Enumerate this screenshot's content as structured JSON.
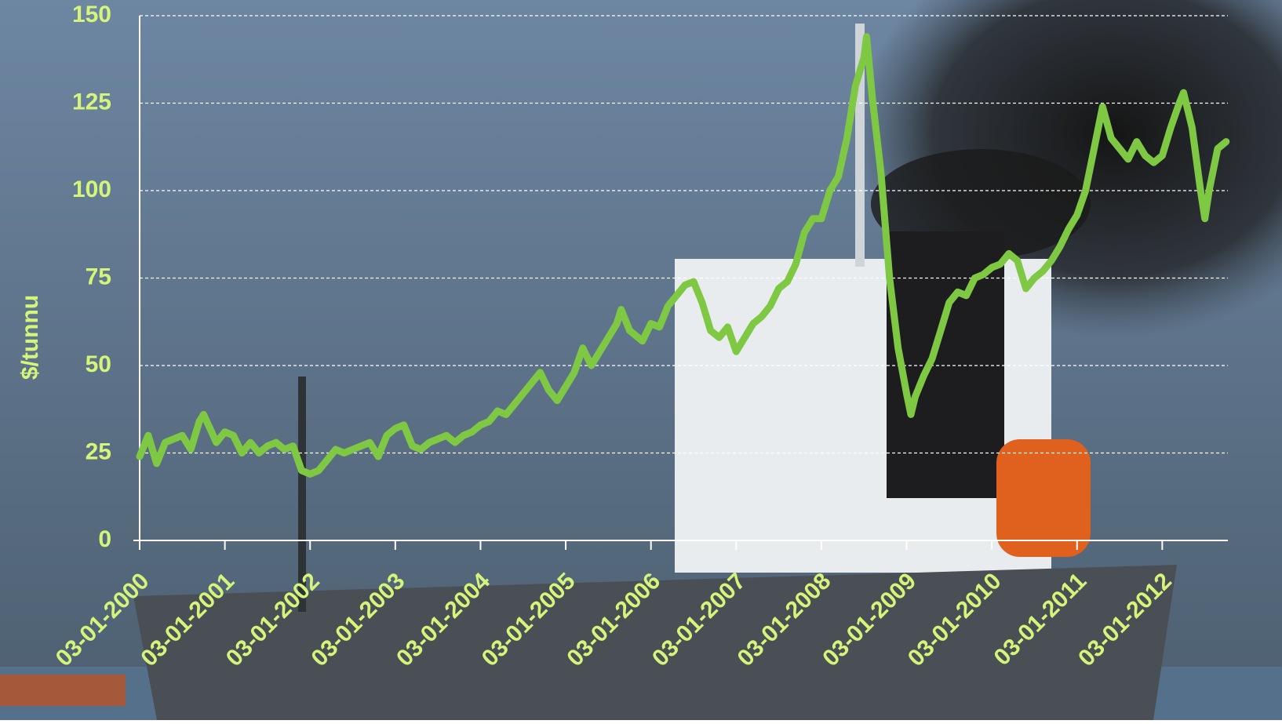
{
  "chart_data": {
    "type": "line",
    "ylabel": "$/tunnu",
    "color": "#7fc843",
    "grid": true,
    "xlim": [
      2000,
      2012.77
    ],
    "ylim": [
      0,
      150
    ],
    "yticks": [
      0,
      25,
      50,
      75,
      100,
      125,
      150
    ],
    "xticks": [
      {
        "value": 2000,
        "label": "03-01-2000"
      },
      {
        "value": 2001,
        "label": "03-01-2001"
      },
      {
        "value": 2002,
        "label": "03-01-2002"
      },
      {
        "value": 2003,
        "label": "03-01-2003"
      },
      {
        "value": 2004,
        "label": "03-01-2004"
      },
      {
        "value": 2005,
        "label": "03-01-2005"
      },
      {
        "value": 2006,
        "label": "03-01-2006"
      },
      {
        "value": 2007,
        "label": "03-01-2007"
      },
      {
        "value": 2008,
        "label": "03-01-2008"
      },
      {
        "value": 2009,
        "label": "03-01-2009"
      },
      {
        "value": 2010,
        "label": "03-01-2010"
      },
      {
        "value": 2011,
        "label": "03-01-2011"
      },
      {
        "value": 2012,
        "label": "03-01-2012"
      }
    ],
    "x": [
      2000.0,
      2000.1,
      2000.2,
      2000.3,
      2000.5,
      2000.6,
      2000.7,
      2000.75,
      2000.9,
      2001.0,
      2001.1,
      2001.2,
      2001.3,
      2001.4,
      2001.5,
      2001.6,
      2001.7,
      2001.8,
      2001.9,
      2002.0,
      2002.1,
      2002.2,
      2002.3,
      2002.4,
      2002.5,
      2002.6,
      2002.7,
      2002.8,
      2002.9,
      2003.0,
      2003.1,
      2003.2,
      2003.3,
      2003.4,
      2003.5,
      2003.6,
      2003.7,
      2003.8,
      2003.9,
      2004.0,
      2004.1,
      2004.2,
      2004.3,
      2004.4,
      2004.5,
      2004.6,
      2004.7,
      2004.8,
      2004.9,
      2005.0,
      2005.1,
      2005.2,
      2005.3,
      2005.4,
      2005.5,
      2005.6,
      2005.65,
      2005.75,
      2005.9,
      2006.0,
      2006.1,
      2006.2,
      2006.3,
      2006.4,
      2006.5,
      2006.6,
      2006.7,
      2006.8,
      2006.9,
      2007.0,
      2007.1,
      2007.2,
      2007.3,
      2007.4,
      2007.5,
      2007.6,
      2007.7,
      2007.8,
      2007.9,
      2008.0,
      2008.1,
      2008.2,
      2008.3,
      2008.4,
      2008.5,
      2008.53,
      2008.6,
      2008.7,
      2008.8,
      2008.9,
      2009.0,
      2009.05,
      2009.1,
      2009.2,
      2009.3,
      2009.4,
      2009.5,
      2009.6,
      2009.7,
      2009.8,
      2009.9,
      2010.0,
      2010.1,
      2010.2,
      2010.3,
      2010.4,
      2010.5,
      2010.6,
      2010.7,
      2010.8,
      2010.9,
      2011.0,
      2011.1,
      2011.2,
      2011.3,
      2011.4,
      2011.5,
      2011.6,
      2011.7,
      2011.8,
      2011.9,
      2012.0,
      2012.1,
      2012.2,
      2012.25,
      2012.35,
      2012.45,
      2012.5,
      2012.55,
      2012.65,
      2012.75
    ],
    "values": [
      24,
      30,
      22,
      28,
      30,
      26,
      34,
      36,
      28,
      31,
      30,
      25,
      28,
      25,
      27,
      28,
      26,
      27,
      20,
      19,
      20,
      23,
      26,
      25,
      26,
      27,
      28,
      24,
      30,
      32,
      33,
      27,
      26,
      28,
      29,
      30,
      28,
      30,
      31,
      33,
      34,
      37,
      36,
      39,
      42,
      45,
      48,
      43,
      40,
      44,
      48,
      55,
      50,
      54,
      58,
      62,
      66,
      60,
      57,
      62,
      61,
      67,
      70,
      73,
      74,
      68,
      60,
      58,
      61,
      54,
      58,
      62,
      64,
      67,
      72,
      74,
      79,
      88,
      92,
      92,
      100,
      104,
      115,
      130,
      138,
      144,
      126,
      105,
      75,
      55,
      42,
      36,
      41,
      47,
      52,
      60,
      68,
      71,
      70,
      75,
      76,
      78,
      79,
      82,
      80,
      72,
      75,
      77,
      80,
      84,
      89,
      93,
      100,
      112,
      124,
      115,
      112,
      109,
      114,
      110,
      108,
      110,
      118,
      125,
      128,
      118,
      100,
      92,
      100,
      112,
      114
    ]
  }
}
